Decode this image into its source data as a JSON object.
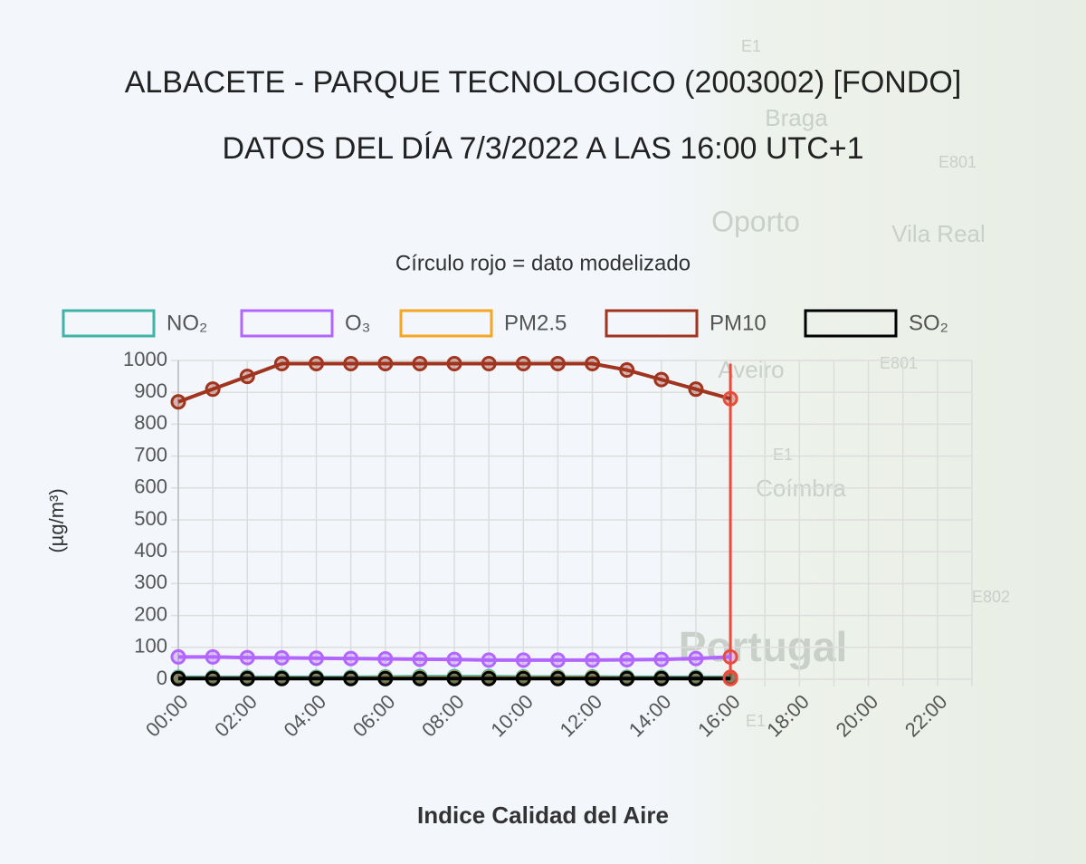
{
  "chart_data": {
    "type": "line",
    "title": "ALBACETE - PARQUE TECNOLOGICO (2003002) [FONDO]",
    "subtitle": "DATOS DEL DÍA 7/3/2022 A LAS 16:00 UTC+1",
    "annotation": "Círculo rojo = dato modelizado",
    "x_label": "Indice Calidad del Aire",
    "y_label": "(µg/m³)",
    "categories": [
      "00:00",
      null,
      "02:00",
      null,
      "04:00",
      null,
      "06:00",
      null,
      "08:00",
      null,
      "10:00",
      null,
      "12:00",
      null,
      "14:00",
      null,
      "16:00",
      null,
      "18:00",
      null,
      "20:00",
      null,
      "22:00",
      null
    ],
    "series": [
      {
        "name": "NO₂",
        "color": "#3fb3a5",
        "values": [
          6,
          6,
          6,
          6,
          6,
          6,
          7,
          8,
          8,
          8,
          7,
          7,
          7,
          6,
          6,
          6,
          6,
          null,
          null,
          null,
          null,
          null,
          null,
          null
        ]
      },
      {
        "name": "O₃",
        "color": "#b266ff",
        "values": [
          70,
          70,
          68,
          67,
          66,
          65,
          64,
          63,
          62,
          60,
          60,
          60,
          60,
          61,
          62,
          65,
          70,
          null,
          null,
          null,
          null,
          null,
          null,
          null
        ]
      },
      {
        "name": "PM2.5",
        "color": "#f5a623",
        "values": [
          3,
          3,
          3,
          3,
          3,
          3,
          4,
          4,
          4,
          4,
          4,
          4,
          4,
          3,
          3,
          3,
          3,
          null,
          null,
          null,
          null,
          null,
          null,
          null
        ]
      },
      {
        "name": "PM10",
        "color": "#a0341f",
        "values": [
          870,
          910,
          950,
          990,
          990,
          990,
          990,
          990,
          990,
          990,
          990,
          990,
          990,
          970,
          940,
          910,
          880,
          null,
          null,
          null,
          null,
          null,
          null,
          null
        ]
      },
      {
        "name": "SO₂",
        "color": "#000000",
        "values": [
          2,
          2,
          2,
          2,
          2,
          2,
          2,
          2,
          2,
          2,
          2,
          2,
          2,
          2,
          2,
          2,
          2,
          null,
          null,
          null,
          null,
          null,
          null,
          null
        ]
      }
    ],
    "ylim": [
      0,
      1000
    ],
    "yticks": [
      0,
      100,
      200,
      300,
      400,
      500,
      600,
      700,
      800,
      900,
      1000
    ],
    "grid": true,
    "legend": "top",
    "highlight_color": "#e74c3c"
  },
  "map": {
    "labels": [
      "E1",
      "Braga",
      "E801",
      "Oporto",
      "Vila Real",
      "Aveiro",
      "E801",
      "E1",
      "Coímbra",
      "E802",
      "Portugal",
      "E1"
    ]
  }
}
